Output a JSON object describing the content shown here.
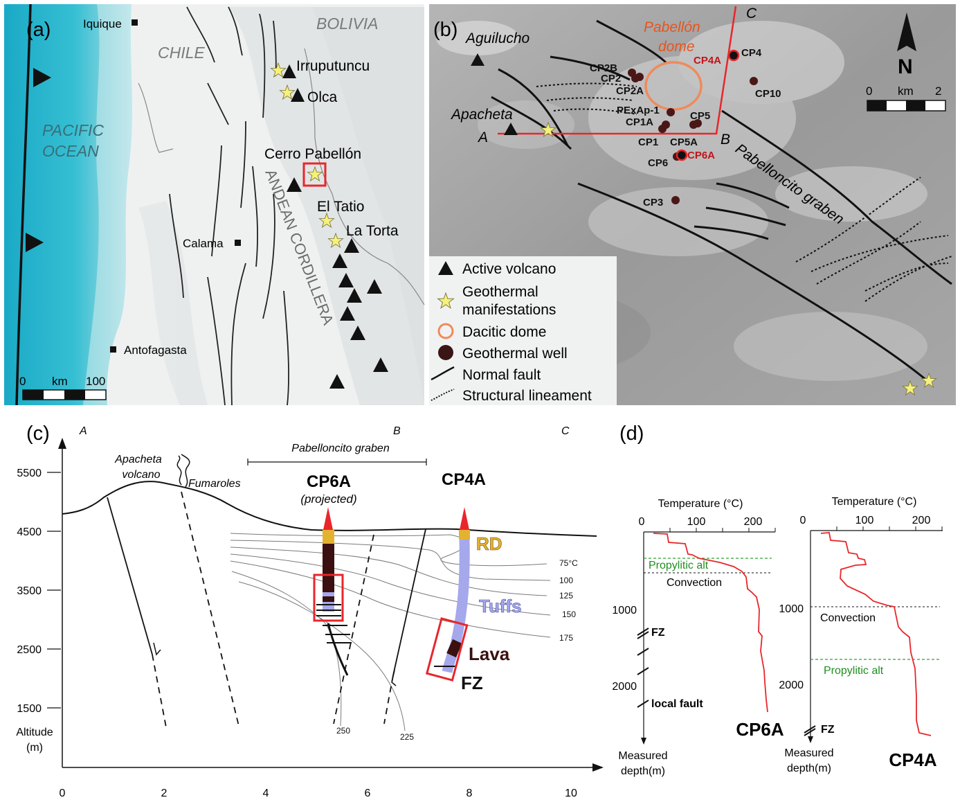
{
  "panel_labels": {
    "a": "(a)",
    "b": "(b)",
    "c": "(c)",
    "d": "(d)"
  },
  "colors": {
    "ocean_deep": "#19b5cf",
    "ocean_mid": "#5ec9d8",
    "ocean_light": "#a8dde3",
    "land": "#eef0f0",
    "relief": "#c9cfd1",
    "shaded_bg": "#9c9c9c",
    "red": "#e8262b",
    "orange": "#f08a5a",
    "well": "#4a1717",
    "star": "#f7f07a",
    "tuffs": "#a6a8ec",
    "rd": "#e4b231",
    "lava": "#3a1010",
    "green_line": "#2aa52a",
    "temp_curve": "#e8262b"
  },
  "panel_a": {
    "cities": {
      "iquique": "Iquique",
      "calama": "Calama",
      "antofagasta": "Antofagasta"
    },
    "countries": {
      "chile": "CHILE",
      "bolivia": "BOLIVIA"
    },
    "ocean": [
      "PACIFIC",
      "OCEAN"
    ],
    "cordillera": "ANDEAN CORDILLERA",
    "volcano_labels": {
      "irruputuncu": "Irruputuncu",
      "olca": "Olca",
      "cerro_pabellon": "Cerro Pabellón",
      "el_tatio": "El Tatio",
      "la_torta": "La Torta"
    },
    "scale": {
      "zero": "0",
      "unit": "km",
      "max": "100"
    }
  },
  "panel_b": {
    "place_labels": {
      "aguilucho": "Aguilucho",
      "apacheta": "Apacheta",
      "dome": [
        "Pabellón",
        "dome"
      ],
      "graben": "Pabelloncito graben"
    },
    "section_points": {
      "a": "A",
      "b": "B",
      "c": "C"
    },
    "wells": {
      "cp2b": "CP2B",
      "cp2": "CP2",
      "cp2a": "CP2A",
      "pexap1": "PExAp-1",
      "cp1a": "CP1A",
      "cp1": "CP1",
      "cp5a": "CP5A",
      "cp5": "CP5",
      "cp6": "CP6",
      "cp6a": "CP6A",
      "cp3": "CP3",
      "cp4": "CP4",
      "cp4a": "CP4A",
      "cp10": "CP10"
    },
    "north": "N",
    "scale": {
      "zero": "0",
      "unit": "km",
      "max": "2"
    },
    "legend": {
      "volcano": "Active volcano",
      "geo_manifest": [
        "Geothermal",
        "manifestations"
      ],
      "dome": "Dacitic dome",
      "well": "Geothermal well",
      "fault": "Normal fault",
      "lineament": "Structural lineament"
    }
  },
  "panel_c": {
    "section_points": {
      "a": "A",
      "b": "B",
      "c": "C"
    },
    "graben": "Pabelloncito graben",
    "apacheta": [
      "Apacheta",
      "volcano"
    ],
    "fumaroles": "Fumaroles",
    "cp6a": "CP6A",
    "projected": "(projected)",
    "cp4a": "CP4A",
    "rd": "RD",
    "tuffs": "Tuffs",
    "lava": "Lava",
    "fz": "FZ",
    "y_ticks": [
      "5500",
      "4500",
      "3500",
      "2500",
      "1500"
    ],
    "y_label": [
      "Altitude",
      "(m)"
    ],
    "x_ticks": [
      "0",
      "2",
      "4",
      "6",
      "8",
      "10"
    ],
    "isotherms": {
      "t75": "75°C",
      "t100": "100",
      "t125": "125",
      "t150": "150",
      "t175": "175",
      "t225": "225",
      "t250": "250"
    }
  },
  "panel_d": {
    "cp6a_plot": {
      "title": "CP6A",
      "x_label": "Temperature (°C)",
      "x_ticks": [
        "0",
        "100",
        "200"
      ],
      "y_ticks": [
        "1000",
        "2000"
      ],
      "y_label": [
        "Measured",
        "depth(m)"
      ],
      "propylitic": "Propylitic alt",
      "convection": "Convection",
      "fz": "FZ",
      "local_fault": "local fault"
    },
    "cp4a_plot": {
      "title": "CP4A",
      "x_label": "Temperature (°C)",
      "x_ticks": [
        "0",
        "100",
        "200"
      ],
      "y_ticks": [
        "1000",
        "2000"
      ],
      "y_label": [
        "Measured",
        "depth(m)"
      ],
      "convection": "Convection",
      "propylitic": "Propylitic alt",
      "fz": "FZ"
    }
  }
}
